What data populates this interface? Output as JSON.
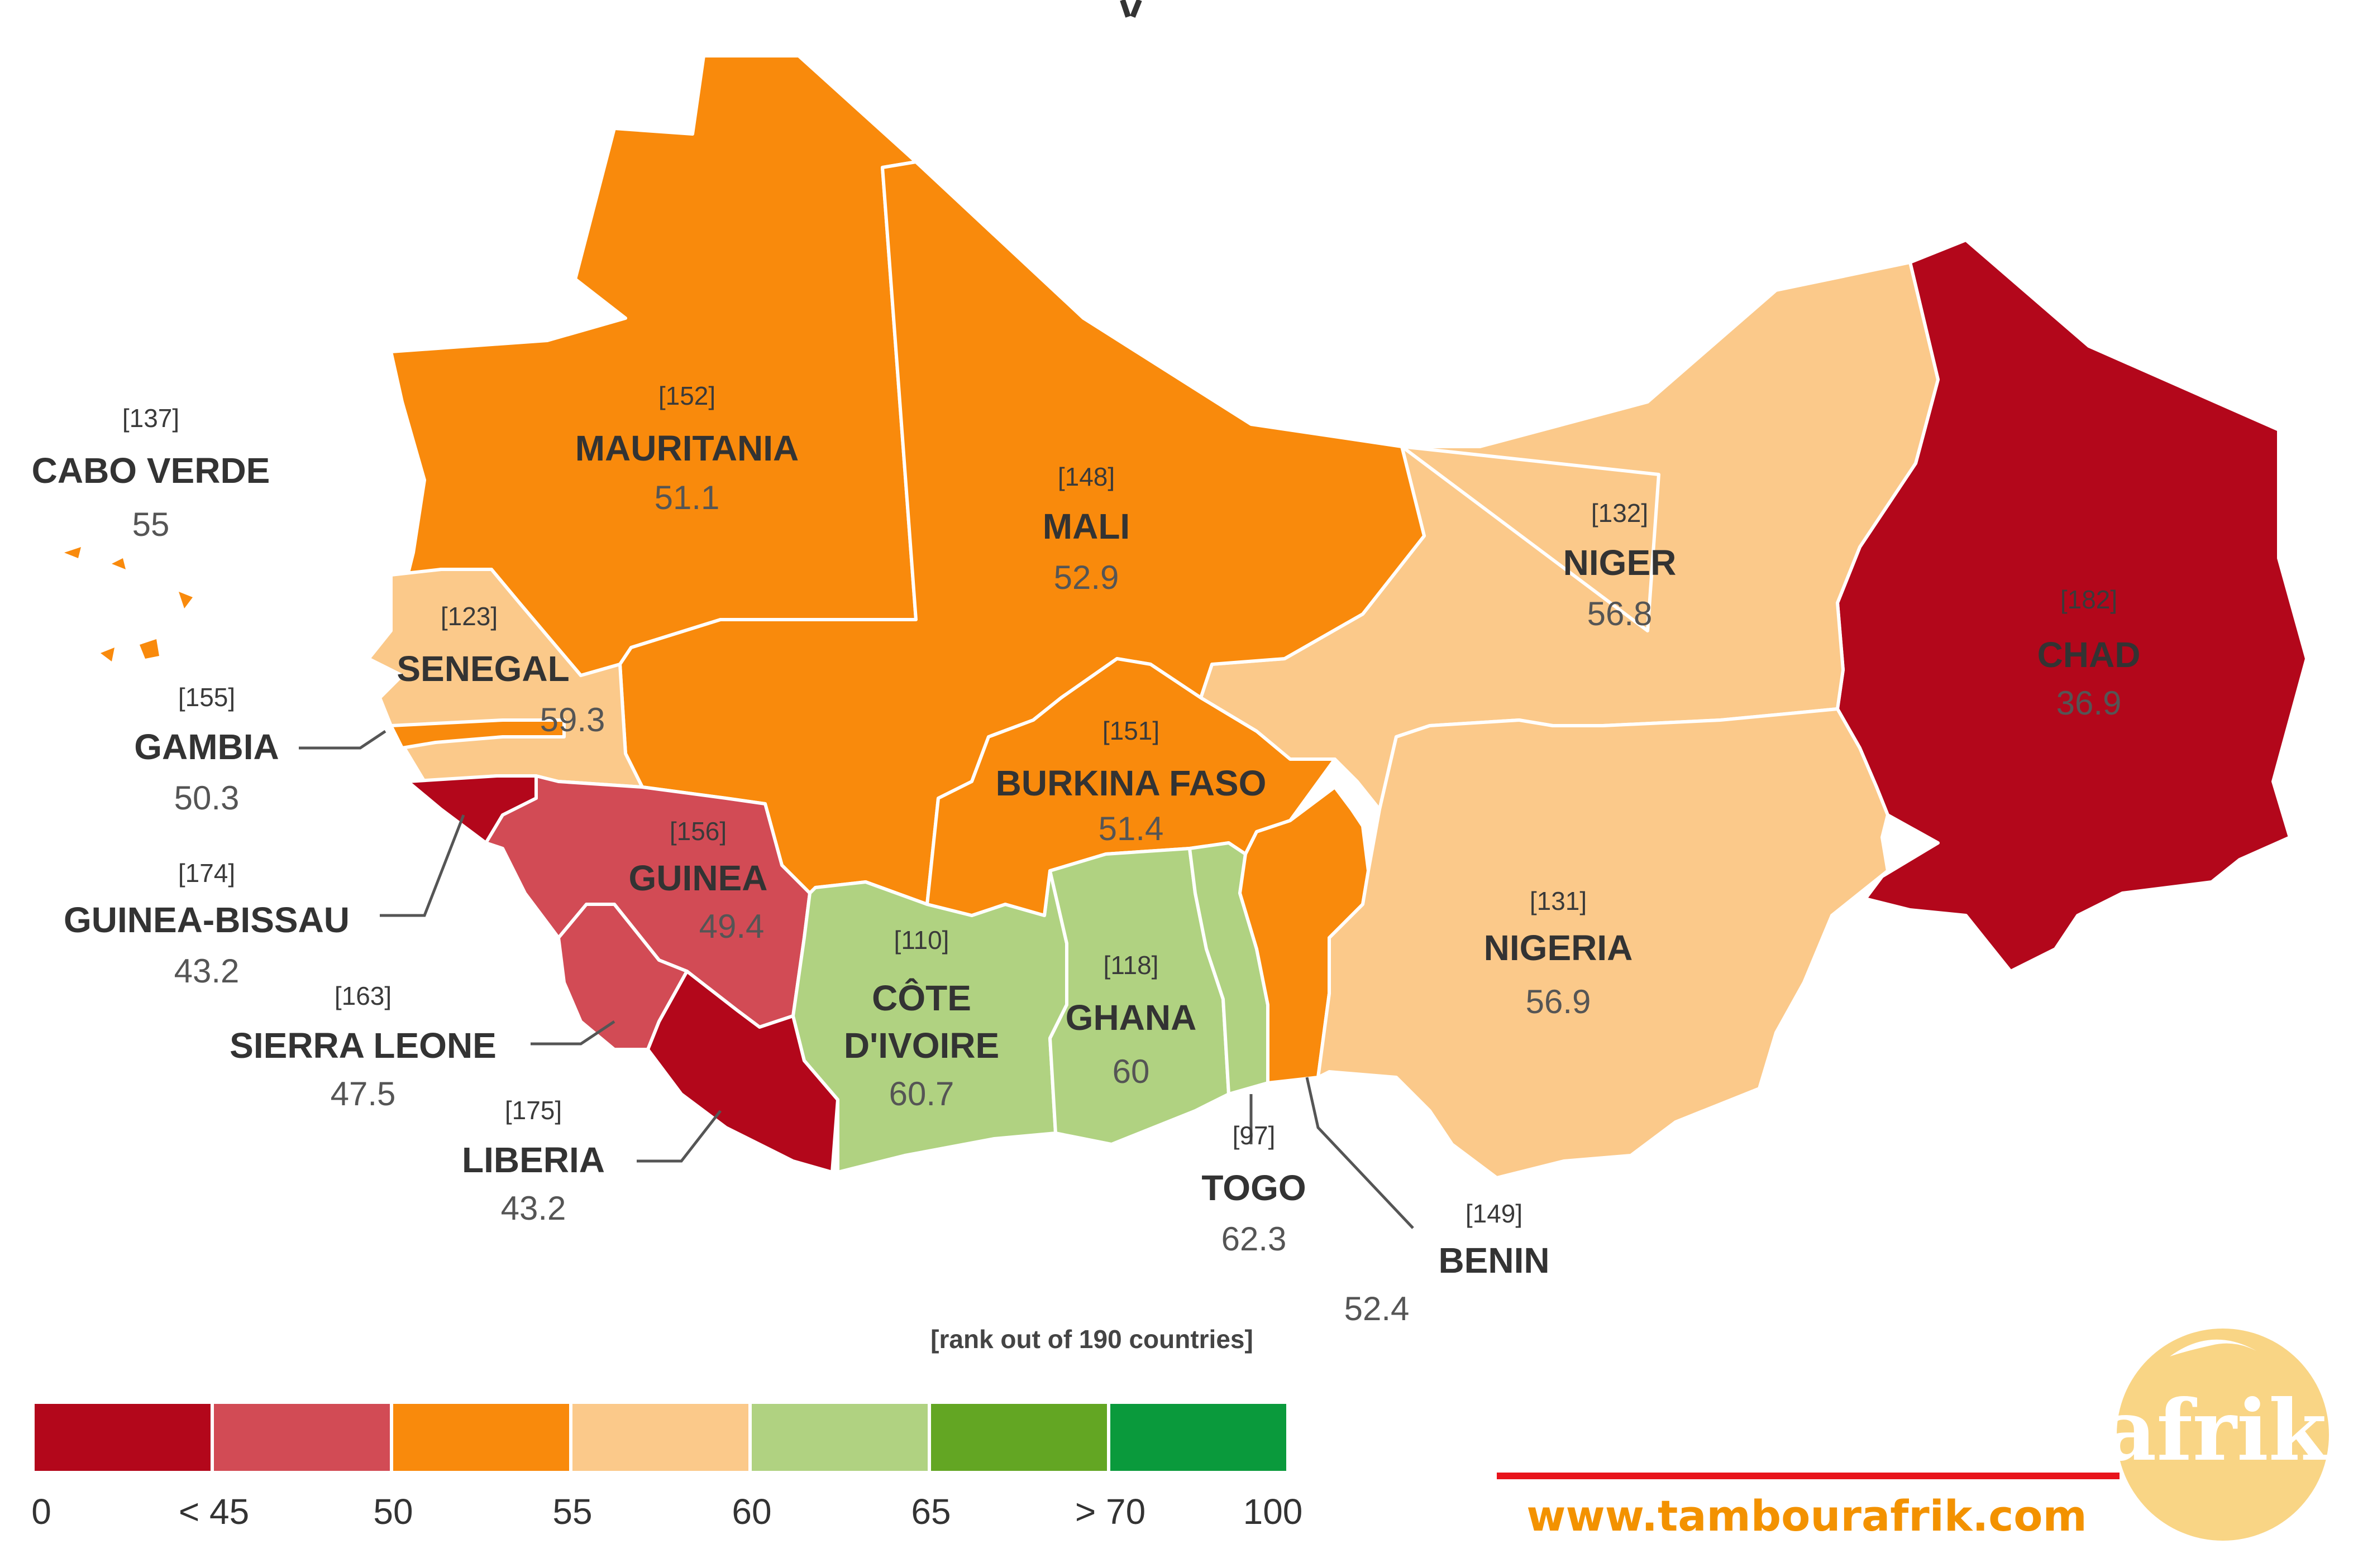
{
  "countries": {
    "cabo_verde": {
      "name": "CABO VERDE",
      "rank": "[137]",
      "score": "55",
      "color": "#fbc98a"
    },
    "mauritania": {
      "name": "MAURITANIA",
      "rank": "[152]",
      "score": "51.1",
      "color": "#f98a0c"
    },
    "mali": {
      "name": "MALI",
      "rank": "[148]",
      "score": "52.9",
      "color": "#f98a0c"
    },
    "niger": {
      "name": "NIGER",
      "rank": "[132]",
      "score": "56.8",
      "color": "#fbc98a"
    },
    "chad": {
      "name": "CHAD",
      "rank": "[182]",
      "score": "36.9",
      "color": "#b3071b"
    },
    "senegal": {
      "name": "SENEGAL",
      "rank": "[123]",
      "score": "59.3",
      "color": "#fbc98a"
    },
    "gambia": {
      "name": "GAMBIA",
      "rank": "[155]",
      "score": "50.3",
      "color": "#f98a0c"
    },
    "burkina_faso": {
      "name": "BURKINA FASO",
      "rank": "[151]",
      "score": "51.4",
      "color": "#f98a0c"
    },
    "guinea_bissau": {
      "name": "GUINEA-BISSAU",
      "rank": "[174]",
      "score": "43.2",
      "color": "#b3071b"
    },
    "guinea": {
      "name": "GUINEA",
      "rank": "[156]",
      "score": "49.4",
      "color": "#d24b55"
    },
    "cote_divoire": {
      "name_line1": "CÔTE",
      "name_line2": "D'IVOIRE",
      "rank": "[110]",
      "score": "60.7",
      "color": "#b0d281"
    },
    "ghana": {
      "name": "GHANA",
      "rank": "[118]",
      "score": "60",
      "color": "#b0d281"
    },
    "nigeria": {
      "name": "NIGERIA",
      "rank": "[131]",
      "score": "56.9",
      "color": "#fbc98a"
    },
    "sierra_leone": {
      "name": "SIERRA LEONE",
      "rank": "[163]",
      "score": "47.5",
      "color": "#d24b55"
    },
    "liberia": {
      "name": "LIBERIA",
      "rank": "[175]",
      "score": "43.2",
      "color": "#b3071b"
    },
    "togo": {
      "name": "TOGO",
      "rank": "[97]",
      "score": "62.3",
      "color": "#b0d281"
    },
    "benin": {
      "name": "BENIN",
      "rank": "[149]",
      "score": "52.4",
      "color": "#f98a0c"
    }
  },
  "rank_note": "[rank out of 190 countries]",
  "legend": {
    "colors": [
      "#b3071b",
      "#d24b55",
      "#f98a0c",
      "#fbc98a",
      "#b0d281",
      "#63a623",
      "#0a9a3c"
    ],
    "ticks": [
      "0",
      "< 45",
      "50",
      "55",
      "60",
      "65",
      "> 70",
      "100"
    ]
  },
  "watermark": {
    "url": "www.tambourafrik.com",
    "logo_text": "afrik",
    "url_color": "#f39200",
    "rule_color": "#e8141c",
    "logo_color": "#f9d585"
  }
}
